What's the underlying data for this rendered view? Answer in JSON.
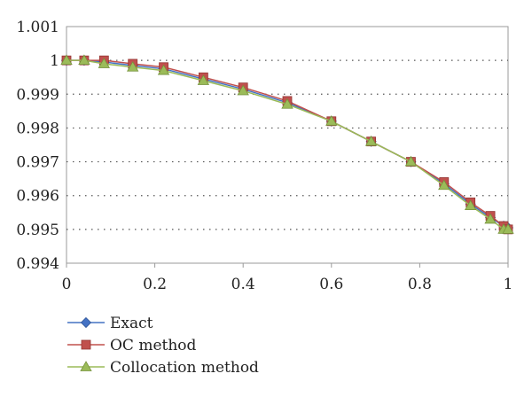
{
  "chart_data": {
    "type": "line",
    "title": "",
    "xlabel": "",
    "ylabel": "",
    "xlim": [
      0,
      1
    ],
    "ylim": [
      0.994,
      1.001
    ],
    "x_ticks": [
      "0",
      "0.2",
      "0.4",
      "0.6",
      "0.8",
      "1"
    ],
    "y_ticks": [
      "0.994",
      "0.995",
      "0.996",
      "0.997",
      "0.998",
      "0.999",
      "1",
      "1.001"
    ],
    "grid": "horizontal dotted",
    "legend_position": "bottom-left",
    "series": [
      {
        "name": "Exact",
        "marker": "diamond",
        "color": "#4472C4",
        "x": [
          0,
          0.04,
          0.085,
          0.15,
          0.22,
          0.31,
          0.4,
          0.5,
          0.6,
          0.69,
          0.78,
          0.855,
          0.915,
          0.96,
          0.99,
          1.0
        ],
        "y": [
          1.0,
          1.0,
          0.99995,
          0.99985,
          0.99975,
          0.99945,
          0.99915,
          0.99875,
          0.9982,
          0.9976,
          0.997,
          0.99635,
          0.99575,
          0.99535,
          0.9951,
          0.99505
        ]
      },
      {
        "name": "OC method",
        "marker": "square",
        "color": "#C0504D",
        "x": [
          0,
          0.04,
          0.085,
          0.15,
          0.22,
          0.31,
          0.4,
          0.5,
          0.6,
          0.69,
          0.78,
          0.855,
          0.915,
          0.96,
          0.99,
          1.0
        ],
        "y": [
          1.0,
          1.0,
          1.0,
          0.9999,
          0.9998,
          0.9995,
          0.9992,
          0.9988,
          0.9982,
          0.9976,
          0.997,
          0.9964,
          0.9958,
          0.9954,
          0.9951,
          0.995
        ]
      },
      {
        "name": "Collocation method",
        "marker": "triangle",
        "color": "#9BBB59",
        "x": [
          0,
          0.04,
          0.085,
          0.15,
          0.22,
          0.31,
          0.4,
          0.5,
          0.6,
          0.69,
          0.78,
          0.855,
          0.915,
          0.96,
          0.99,
          1.0
        ],
        "y": [
          1.0,
          1.0,
          0.9999,
          0.9998,
          0.9997,
          0.9994,
          0.9991,
          0.9987,
          0.9982,
          0.9976,
          0.997,
          0.9963,
          0.9957,
          0.9953,
          0.995,
          0.995
        ]
      }
    ]
  }
}
